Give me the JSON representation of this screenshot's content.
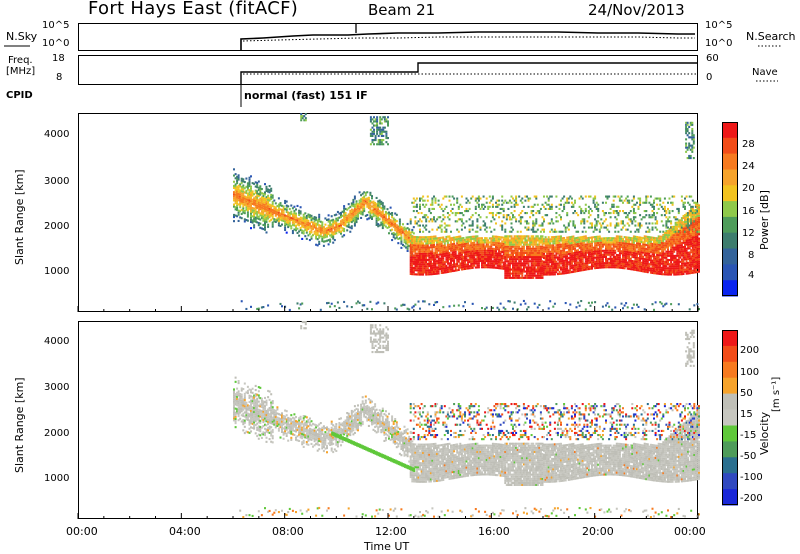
{
  "header": {
    "station": "Fort Hays East (fitACF)",
    "beam": "Beam 21",
    "date": "24/Nov/2013"
  },
  "top_panel": {
    "left_label": "N.Sky",
    "left_ticks": [
      "10^5",
      "10^0"
    ],
    "right_ticks": [
      "10^5",
      "10^0"
    ],
    "right_label": "N.Search"
  },
  "freq_panel": {
    "left_label_1": "Freq.",
    "left_label_2": "[MHz]",
    "left_ticks": [
      "18",
      "8"
    ],
    "right_ticks": [
      "60",
      "0"
    ],
    "right_label": "Nave"
  },
  "cpid": {
    "label": "CPID",
    "value": "normal (fast) 151 IF"
  },
  "colors": {
    "power": [
      "#0a24f0",
      "#2a55b4",
      "#33639a",
      "#3d7d6e",
      "#4e9c5a",
      "#8fc94a",
      "#f2c320",
      "#f6a32b",
      "#f77a1f",
      "#f24c18",
      "#ee1818"
    ],
    "velocity": [
      "#ee1818",
      "#f24c18",
      "#f77a1f",
      "#f6a32b",
      "#bfbfb7",
      "#c7c7c0",
      "#5fc83a",
      "#4e9c5a",
      "#2a6f8f",
      "#3049c0",
      "#1a28d8"
    ]
  },
  "chart_data": [
    {
      "type": "line",
      "title": "",
      "ylabel": "N.Sky",
      "y2label": "N.Search",
      "scale": "log",
      "ylim": [
        "10^0",
        "10^5"
      ],
      "xlim": [
        0,
        24
      ]
    },
    {
      "type": "line",
      "ylabel": "Freq. [MHz]",
      "y2label": "Nave",
      "ylim": [
        8,
        18
      ],
      "y2lim": [
        0,
        60
      ],
      "series": [
        {
          "values": [
            {
              "x": 6.0,
              "y": 11
            },
            {
              "x": 13.0,
              "y": 11
            },
            {
              "x": 13.0,
              "y": 15
            },
            {
              "x": 24.0,
              "y": 15
            }
          ]
        }
      ]
    },
    {
      "type": "heatmap",
      "ylabel": "Slant Range [km]",
      "colorbar_label": "Power [dB]",
      "colorbar_ticks": [
        "28",
        "24",
        "20",
        "16",
        "12",
        "8",
        "4"
      ],
      "y_ticks": [
        "4000",
        "3000",
        "2000",
        "1000"
      ],
      "ylim": [
        180,
        4500
      ],
      "xlim": [
        0,
        24
      ],
      "x_ticks": [
        "00:00",
        "04:00",
        "08:00",
        "12:00",
        "16:00",
        "20:00",
        "00:00"
      ],
      "xlabel": "Time UT",
      "description": "Backscatter from 06:00 UT onward; band near 2000-3000 km 06:00-12:30, strong echoes 1000-2000 km 13:00-24:00"
    },
    {
      "type": "heatmap",
      "ylabel": "Slant Range [km]",
      "colorbar_label": "Velocity",
      "colorbar_unit": "[m s⁻¹]",
      "colorbar_ticks": [
        "200",
        "100",
        "50",
        "15",
        "-15",
        "-50",
        "-100",
        "-200"
      ],
      "y_ticks": [
        "4000",
        "3000",
        "2000",
        "1000"
      ],
      "ylim": [
        180,
        4500
      ],
      "xlim": [
        0,
        24
      ],
      "x_ticks": [
        "00:00",
        "04:00",
        "08:00",
        "12:00",
        "16:00",
        "20:00",
        "00:00"
      ],
      "xlabel": "Time UT"
    }
  ]
}
